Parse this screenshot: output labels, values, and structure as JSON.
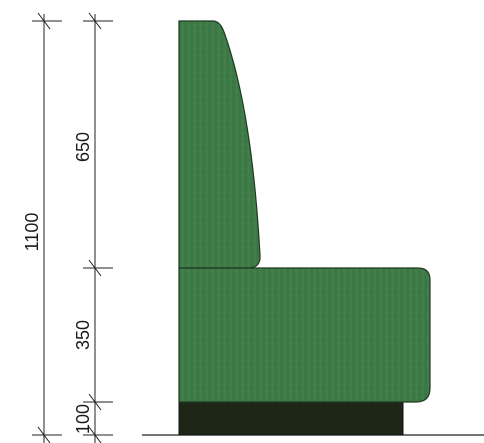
{
  "dimensions": {
    "total_height": "1100",
    "backrest_height": "650",
    "seat_height": "350",
    "base_height": "100"
  },
  "colors": {
    "upholstery": "#3f7c47",
    "upholstery_light": "#4d8a55",
    "upholstery_edge": "#1f3a22",
    "base": "#1d2617",
    "lines": "#222222"
  }
}
